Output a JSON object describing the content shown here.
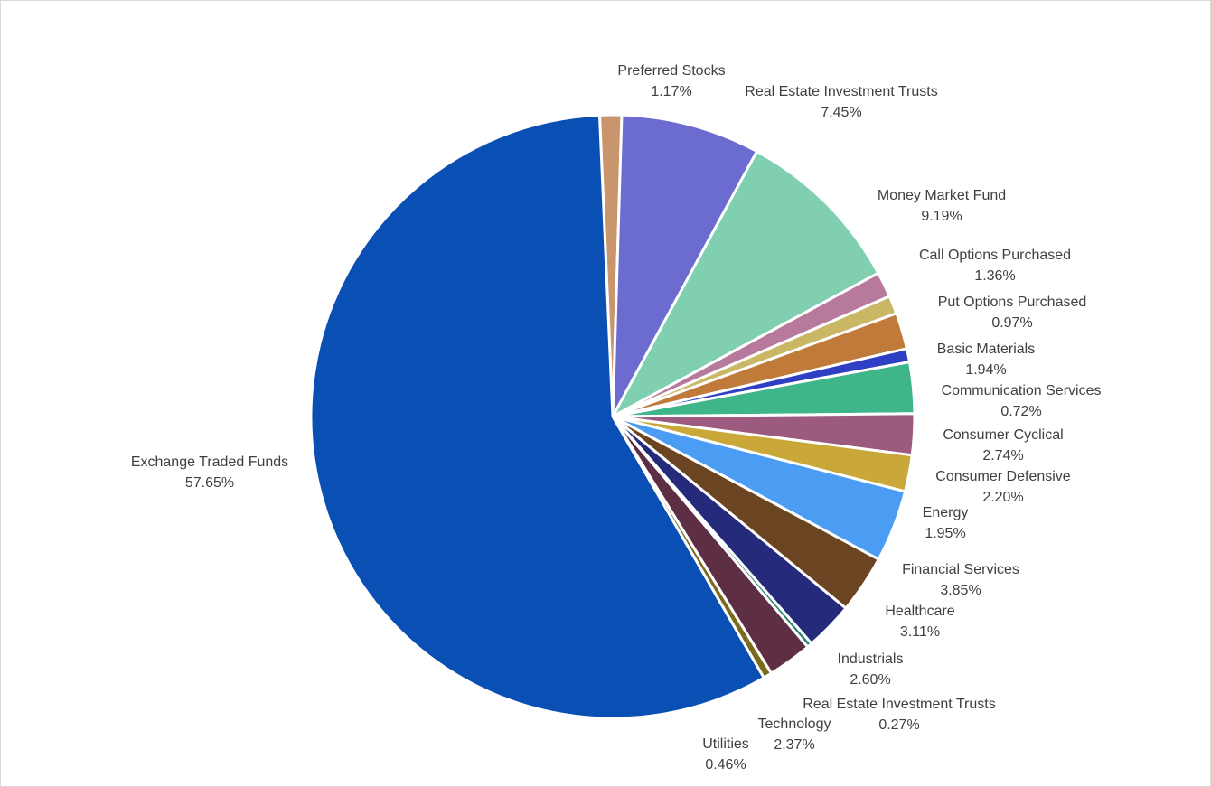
{
  "chart_data": {
    "type": "pie",
    "title": "",
    "legend": "none",
    "label_format": "category name and percentage",
    "slices": [
      {
        "label": "Preferred Stocks",
        "value": 1.17,
        "value_label": "1.17%",
        "color": "#C8956C"
      },
      {
        "label": "Real Estate Investment Trusts",
        "value": 7.45,
        "value_label": "7.45%",
        "color": "#6C6CD0"
      },
      {
        "label": "Money Market Fund",
        "value": 9.19,
        "value_label": "9.19%",
        "color": "#7FCFB0"
      },
      {
        "label": "Call Options Purchased",
        "value": 1.36,
        "value_label": "1.36%",
        "color": "#B87A9C"
      },
      {
        "label": "Put Options Purchased",
        "value": 0.97,
        "value_label": "0.97%",
        "color": "#C9B766"
      },
      {
        "label": "Basic Materials",
        "value": 1.94,
        "value_label": "1.94%",
        "color": "#C07A3A"
      },
      {
        "label": "Communication Services",
        "value": 0.72,
        "value_label": "0.72%",
        "color": "#2F3FC4"
      },
      {
        "label": "Consumer Cyclical",
        "value": 2.74,
        "value_label": "2.74%",
        "color": "#3FB58A"
      },
      {
        "label": "Consumer Defensive",
        "value": 2.2,
        "value_label": "2.20%",
        "color": "#9C5A7E"
      },
      {
        "label": "Energy",
        "value": 1.95,
        "value_label": "1.95%",
        "color": "#C9A839"
      },
      {
        "label": "Financial Services",
        "value": 3.85,
        "value_label": "3.85%",
        "color": "#4A9DF2"
      },
      {
        "label": "Healthcare",
        "value": 3.11,
        "value_label": "3.11%",
        "color": "#6B4522"
      },
      {
        "label": "Industrials",
        "value": 2.6,
        "value_label": "2.60%",
        "color": "#252A7A"
      },
      {
        "label": "Real Estate Investment Trusts",
        "value": 0.27,
        "value_label": "0.27%",
        "color": "#2C8070"
      },
      {
        "label": "Technology",
        "value": 2.37,
        "value_label": "2.37%",
        "color": "#5E2E45"
      },
      {
        "label": "Utilities",
        "value": 0.46,
        "value_label": "0.46%",
        "color": "#7A6A1E"
      },
      {
        "label": "Exchange Traded Funds",
        "value": 57.65,
        "value_label": "57.65%",
        "color": "#0A4FB4"
      }
    ]
  }
}
